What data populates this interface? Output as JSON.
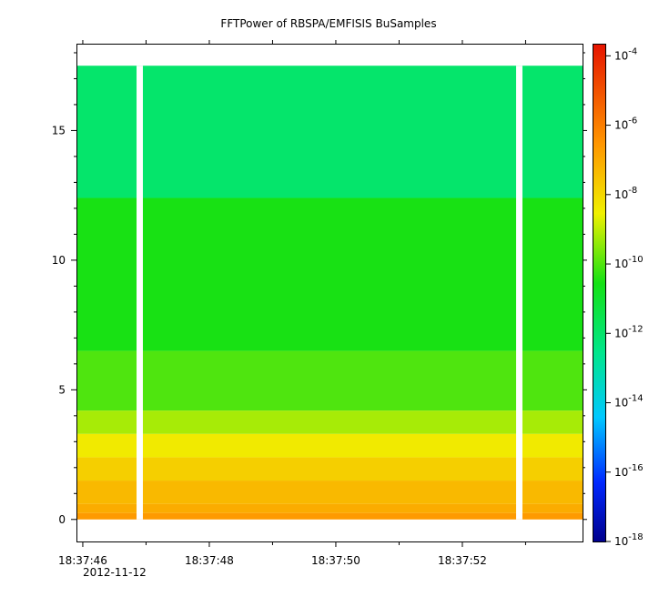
{
  "chart_data": {
    "type": "heatmap",
    "title": "FFTPower of RBSPA/EMFISIS  BuSamples",
    "x_ticks": [
      {
        "label": "18:37:46",
        "t": 46.0
      },
      {
        "label": "18:37:48",
        "t": 48.0
      },
      {
        "label": "18:37:50",
        "t": 50.0
      },
      {
        "label": "18:37:52",
        "t": 52.0
      }
    ],
    "x_minor_ticks": [
      46.0,
      47.0,
      48.0,
      49.0,
      50.0,
      51.0,
      52.0,
      53.0
    ],
    "x_date_label": "2012-11-12",
    "xlim": [
      45.9,
      53.9
    ],
    "y_ticks": [
      0,
      5,
      10,
      15
    ],
    "ylim": [
      -0.85,
      18.35
    ],
    "freq_range": [
      0,
      17.5
    ],
    "data_gaps": [
      [
        46.85,
        46.95
      ],
      [
        52.85,
        52.95
      ]
    ],
    "bands": [
      {
        "y_range": [
          0.0,
          0.25
        ],
        "level": -6.6
      },
      {
        "y_range": [
          0.25,
          0.6
        ],
        "level": -7.0
      },
      {
        "y_range": [
          0.6,
          1.5
        ],
        "level": -7.3
      },
      {
        "y_range": [
          1.5,
          2.4
        ],
        "level": -7.8
      },
      {
        "y_range": [
          2.4,
          3.3
        ],
        "level": -8.4
      },
      {
        "y_range": [
          3.3,
          4.2
        ],
        "level": -9.2
      },
      {
        "y_range": [
          4.2,
          6.5
        ],
        "level": -10.0
      },
      {
        "y_range": [
          6.5,
          12.4
        ],
        "level": -10.5
      },
      {
        "y_range": [
          12.4,
          17.5
        ],
        "level": -12.0
      }
    ],
    "colorbar": {
      "scale": "log",
      "range_exp": [
        -18,
        -3.65
      ],
      "tick_exps": [
        -4,
        -6,
        -8,
        -10,
        -12,
        -14,
        -16,
        -18
      ]
    }
  }
}
